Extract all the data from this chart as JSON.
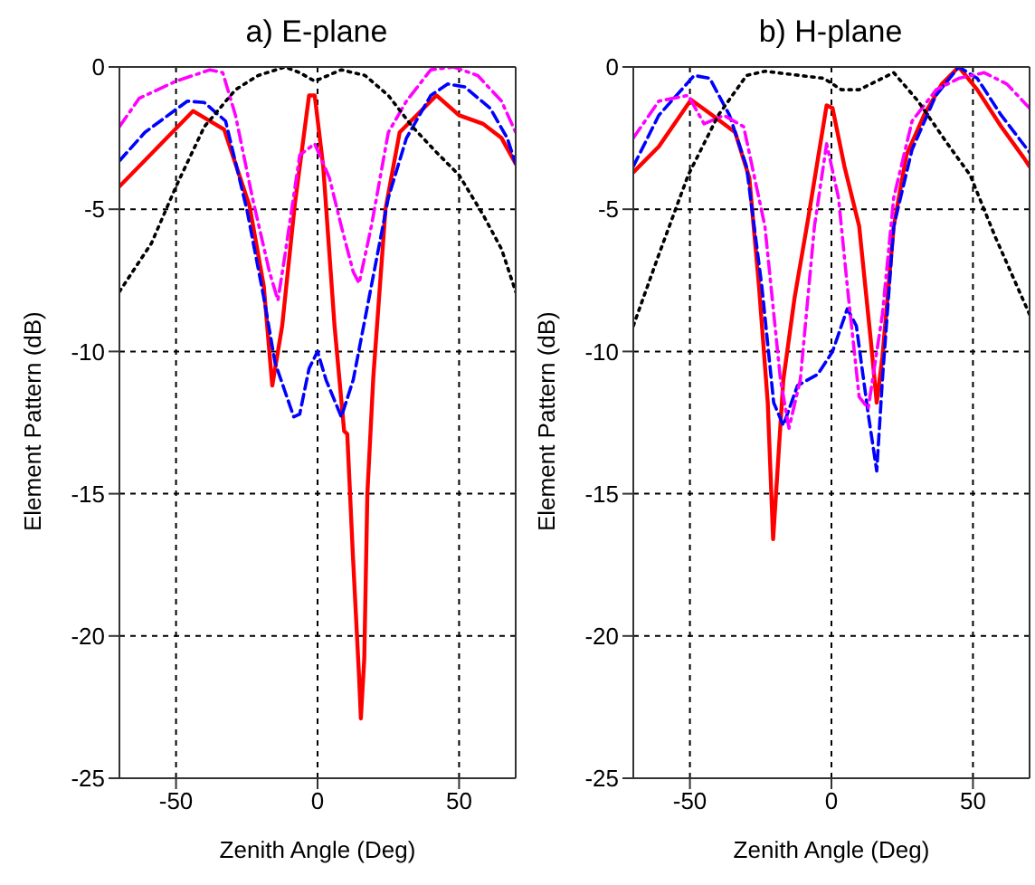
{
  "chart_data": [
    {
      "type": "line",
      "title": "a) E-plane",
      "xlabel": "Zenith Angle (Deg)",
      "ylabel": "Element Pattern (dB)",
      "xlim": [
        -70,
        70
      ],
      "xticks": [
        -50,
        0,
        50
      ],
      "ylim": [
        -25,
        0
      ],
      "yticks": [
        -25,
        -20,
        -15,
        -10,
        -5,
        0
      ],
      "grid": true,
      "legend": false,
      "marker": "none",
      "series": [
        {
          "color": "#ff0000",
          "line_style": "solid",
          "x": [
            -70,
            -44,
            -33,
            -24,
            -19,
            -16,
            -12.5,
            -8,
            -3,
            -1,
            2,
            6,
            9.4,
            10.5,
            12.5,
            14.7,
            15.3,
            16.5,
            17.6,
            19.7,
            24,
            29,
            42,
            50,
            58.5,
            65,
            70
          ],
          "values": [
            -4.2,
            -1.55,
            -2.2,
            -4.9,
            -7.7,
            -11.2,
            -9.1,
            -4.8,
            -1,
            -1,
            -3.5,
            -9.1,
            -12.8,
            -12.9,
            -17.2,
            -21.5,
            -22.9,
            -20.8,
            -15,
            -10.9,
            -5,
            -2.3,
            -1,
            -1.7,
            -2,
            -2.5,
            -3.4
          ]
        },
        {
          "color": "#0000ff",
          "line_style": "dashed",
          "x": [
            -70,
            -61,
            -46,
            -40,
            -32.5,
            -25,
            -19,
            -15,
            -8.4,
            -6.3,
            -3,
            0,
            3,
            8.4,
            12.6,
            19,
            25,
            31.4,
            40,
            46,
            52,
            61,
            67,
            70
          ],
          "values": [
            -3.3,
            -2.3,
            -1.2,
            -1.25,
            -1.9,
            -5,
            -8.1,
            -10.4,
            -12.3,
            -12.2,
            -10.6,
            -10,
            -11,
            -12.3,
            -11,
            -7.7,
            -4.6,
            -2.5,
            -1,
            -0.6,
            -0.7,
            -1.45,
            -2.5,
            -3.4
          ]
        },
        {
          "color": "#ff00ff",
          "line_style": "dashdot",
          "x": [
            -70,
            -63,
            -50,
            -38,
            -33.5,
            -29,
            -23,
            -17,
            -14,
            -11.5,
            -6.3,
            -1,
            4.2,
            8.4,
            12.6,
            14.7,
            19,
            25,
            31.4,
            40,
            48,
            56.6,
            65,
            70
          ],
          "values": [
            -2.1,
            -1.1,
            -0.5,
            -0.1,
            -0.2,
            -1.7,
            -4.6,
            -7.2,
            -8.2,
            -6.6,
            -3.1,
            -2.7,
            -3.9,
            -5.6,
            -7.2,
            -7.6,
            -5.6,
            -2.3,
            -1.2,
            -0.1,
            0,
            -0.3,
            -1.2,
            -2.3
          ]
        },
        {
          "color": "#000000",
          "line_style": "dotted",
          "x": [
            -70,
            -58.7,
            -50,
            -40,
            -29,
            -21,
            -11.5,
            -6.3,
            -1,
            8.4,
            16.8,
            25,
            33.5,
            42,
            50,
            58.5,
            65,
            70
          ],
          "values": [
            -7.9,
            -6.2,
            -4.2,
            -2.1,
            -0.8,
            -0.3,
            0,
            -0.2,
            -0.5,
            -0.1,
            -0.3,
            -1,
            -2.1,
            -3,
            -3.8,
            -5.2,
            -6.4,
            -7.9
          ]
        }
      ]
    },
    {
      "type": "line",
      "title": "b) H-plane",
      "xlabel": "Zenith Angle (Deg)",
      "ylabel": "Element Pattern (dB)",
      "xlim": [
        -70,
        70
      ],
      "xticks": [
        -50,
        0,
        50
      ],
      "ylim": [
        -25,
        0
      ],
      "yticks": [
        -25,
        -20,
        -15,
        -10,
        -5,
        0
      ],
      "grid": true,
      "legend": false,
      "marker": "none",
      "series": [
        {
          "color": "#ff0000",
          "line_style": "solid",
          "x": [
            -70,
            -61,
            -49.6,
            -42,
            -34,
            -29,
            -25.6,
            -22.5,
            -20.6,
            -17,
            -13,
            -8,
            -1.7,
            0.4,
            4.6,
            9.8,
            14,
            16,
            18,
            22,
            26.5,
            32.7,
            39,
            45,
            51.5,
            60,
            68,
            70
          ],
          "values": [
            -3.7,
            -2.8,
            -1.15,
            -1.7,
            -2.3,
            -3.9,
            -7.7,
            -11.8,
            -16.6,
            -11,
            -8.1,
            -5.2,
            -1.35,
            -1.45,
            -3.5,
            -5.6,
            -9.7,
            -11.8,
            -10.2,
            -5.6,
            -3.1,
            -1.7,
            -0.6,
            0,
            -0.8,
            -2.1,
            -3.2,
            -3.5
          ]
        },
        {
          "color": "#0000ff",
          "line_style": "dashed",
          "x": [
            -70,
            -61,
            -48.5,
            -43,
            -36,
            -30,
            -24.6,
            -20.4,
            -17,
            -12,
            -4.8,
            0.4,
            5.6,
            8.8,
            13,
            16,
            18,
            22,
            28.5,
            36.9,
            45,
            51.5,
            60,
            70
          ],
          "values": [
            -3.5,
            -1.7,
            -0.3,
            -0.4,
            -1.7,
            -3.5,
            -7.7,
            -11.8,
            -12.6,
            -11.2,
            -10.8,
            -10,
            -8.5,
            -9.1,
            -12.2,
            -14.2,
            -11,
            -5.6,
            -2.9,
            -1,
            0,
            -0.4,
            -1.7,
            -3
          ]
        },
        {
          "color": "#ff00ff",
          "line_style": "dashdot",
          "x": [
            -70,
            -61,
            -50.6,
            -45,
            -38,
            -31,
            -23.5,
            -18,
            -15,
            -11,
            -6,
            -1.7,
            2.5,
            5.6,
            9.8,
            13,
            18,
            22,
            28.5,
            37,
            45,
            54,
            62,
            70
          ],
          "values": [
            -2.5,
            -1.2,
            -1,
            -2,
            -1.7,
            -2.1,
            -5.6,
            -11,
            -12.7,
            -11,
            -5.6,
            -2.7,
            -4.6,
            -7.7,
            -11.6,
            -12,
            -8.7,
            -4.6,
            -1.9,
            -0.8,
            -0.4,
            -0.2,
            -0.6,
            -1.45
          ]
        },
        {
          "color": "#000000",
          "line_style": "dotted",
          "x": [
            -70,
            -61,
            -50.6,
            -40,
            -30,
            -23.5,
            -11,
            -2.7,
            3.5,
            9.8,
            22,
            30.6,
            41,
            49,
            58,
            70
          ],
          "values": [
            -9.1,
            -6.6,
            -3.8,
            -1.7,
            -0.3,
            -0.15,
            -0.3,
            -0.4,
            -0.8,
            -0.8,
            -0.2,
            -1.2,
            -2.7,
            -3.8,
            -6,
            -8.7
          ]
        }
      ]
    }
  ]
}
